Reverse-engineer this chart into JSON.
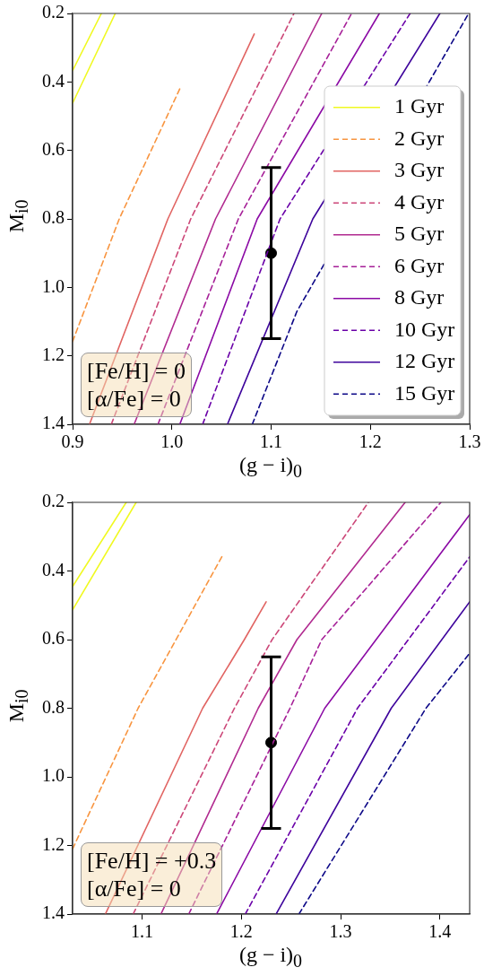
{
  "chart_data": [
    {
      "type": "line",
      "xlabel": "(g − i)$_{0}$",
      "ylabel": "M$_{i0}$",
      "xlim": [
        0.9,
        1.3
      ],
      "ylim": [
        1.4,
        0.2
      ],
      "xticks": [
        0.9,
        {
          "value": 1,
          "label": "1.0"
        },
        1.1,
        1.2,
        1.3
      ],
      "yticks": [
        0.2,
        0.4,
        0.6,
        0.8,
        {
          "value": 1,
          "label": "1.0"
        },
        1.2,
        1.4
      ],
      "legend": "bottom right",
      "annotations": [
        "[Fe/H] = 0",
        "[α/Fe] = 0"
      ],
      "series": [
        {
          "name": "1 Gyr",
          "color": "#f0f921",
          "line_style": "solid",
          "x": [
            0.9,
            0.929,
            null,
            0.9,
            0.943
          ],
          "values": [
            0.367,
            0.2,
            null,
            0.462,
            0.2
          ]
        },
        {
          "name": "2 Gyr",
          "color": "#f89540",
          "line_style": "dashed",
          "x": [
            0.9,
            0.947,
            1.008
          ],
          "values": [
            1.158,
            0.8,
            0.42
          ]
        },
        {
          "name": "3 Gyr",
          "color": "#e16462",
          "line_style": "solid",
          "x": [
            0.917,
            0.996,
            1.083
          ],
          "values": [
            1.4,
            0.8,
            0.26
          ]
        },
        {
          "name": "4 Gyr",
          "color": "#cc4778",
          "line_style": "dashed",
          "x": [
            0.939,
            1.019,
            1.123
          ],
          "values": [
            1.4,
            0.8,
            0.2
          ]
        },
        {
          "name": "5 Gyr",
          "color": "#b12a90",
          "line_style": "solid",
          "x": [
            0.962,
            1.044,
            1.151
          ],
          "values": [
            1.4,
            0.8,
            0.2
          ]
        },
        {
          "name": "6 Gyr",
          "color": "#a62098",
          "line_style": "dashed",
          "x": [
            0.986,
            1.067,
            1.181
          ],
          "values": [
            1.4,
            0.8,
            0.2
          ]
        },
        {
          "name": "8 Gyr",
          "color": "#8b0aa5",
          "line_style": "solid",
          "x": [
            1.008,
            1.086,
            1.209
          ],
          "values": [
            1.4,
            0.8,
            0.2
          ]
        },
        {
          "name": "10 Gyr",
          "color": "#6a00a8",
          "line_style": "dashed",
          "x": [
            1.031,
            1.109,
            1.24
          ],
          "values": [
            1.4,
            0.8,
            0.2
          ]
        },
        {
          "name": "12 Gyr",
          "color": "#3e049c",
          "line_style": "solid",
          "x": [
            1.056,
            1.142,
            1.27
          ],
          "values": [
            1.4,
            0.8,
            0.2
          ]
        },
        {
          "name": "15 Gyr",
          "color": "#0d0887",
          "line_style": "dashed",
          "x": [
            1.081,
            1.126,
            1.299
          ],
          "values": [
            1.4,
            1.07,
            0.2
          ]
        },
        {
          "type": "scatter",
          "color": "#000000",
          "marker": "circle",
          "x": [
            1.1
          ],
          "values": [
            0.9
          ],
          "errors": [
            0.25
          ]
        }
      ]
    },
    {
      "type": "line",
      "xlabel": "(g − i)$_{0}$",
      "ylabel": "M$_{i0}$",
      "xlim": [
        1.03,
        1.43
      ],
      "ylim": [
        1.4,
        0.2
      ],
      "xticks": [
        1.1,
        1.2,
        1.3,
        1.4
      ],
      "yticks": [
        0.2,
        0.4,
        0.6,
        0.8,
        {
          "value": 1,
          "label": "1.0"
        },
        1.2,
        1.4
      ],
      "annotations": [
        "[Fe/H] = +0.3",
        "[α/Fe] = 0"
      ],
      "series": [
        {
          "color": "#f0f921",
          "line_style": "solid",
          "x": [
            1.03,
            1.084,
            null,
            1.03,
            1.094
          ],
          "values": [
            0.445,
            0.2,
            null,
            0.513,
            0.2
          ]
        },
        {
          "color": "#f89540",
          "line_style": "dashed",
          "x": [
            1.03,
            1.096,
            1.182
          ],
          "values": [
            1.21,
            0.8,
            0.35
          ]
        },
        {
          "color": "#e16462",
          "line_style": "solid",
          "x": [
            1.063,
            1.161,
            1.203,
            1.225
          ],
          "values": [
            1.4,
            0.8,
            0.6,
            0.49
          ]
        },
        {
          "color": "#cc4778",
          "line_style": "dashed",
          "x": [
            1.091,
            1.193,
            1.231,
            1.328
          ],
          "values": [
            1.4,
            0.8,
            0.6,
            0.2
          ]
        },
        {
          "color": "#b12a90",
          "line_style": "solid",
          "x": [
            1.119,
            1.217,
            1.256,
            1.365
          ],
          "values": [
            1.4,
            0.8,
            0.6,
            0.2
          ]
        },
        {
          "color": "#a62098",
          "line_style": "dashed",
          "x": [
            1.147,
            1.249,
            1.281,
            1.401
          ],
          "values": [
            1.4,
            0.8,
            0.6,
            0.2
          ]
        },
        {
          "color": "#8b0aa5",
          "line_style": "solid",
          "x": [
            1.175,
            1.284,
            1.43
          ],
          "values": [
            1.4,
            0.8,
            0.236
          ]
        },
        {
          "color": "#6a00a8",
          "line_style": "dashed",
          "x": [
            1.204,
            1.317,
            1.43
          ],
          "values": [
            1.4,
            0.8,
            0.359
          ]
        },
        {
          "color": "#3e049c",
          "line_style": "solid",
          "x": [
            1.235,
            1.351,
            1.43
          ],
          "values": [
            1.4,
            0.8,
            0.49
          ]
        },
        {
          "color": "#0d0887",
          "line_style": "dashed",
          "x": [
            1.258,
            1.386,
            1.43
          ],
          "values": [
            1.4,
            0.8,
            0.64
          ]
        },
        {
          "type": "scatter",
          "color": "#000000",
          "marker": "circle",
          "x": [
            1.23
          ],
          "values": [
            0.9
          ],
          "errors": [
            0.25
          ]
        }
      ]
    }
  ]
}
